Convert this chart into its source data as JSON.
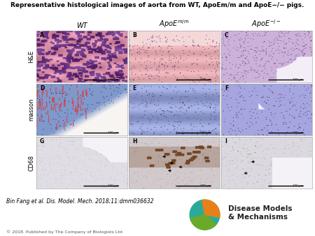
{
  "title": "Representative histological images of aorta from WT, ApoEm/m and ApoE−/− pigs.",
  "col_headers": [
    "WT",
    "$ApoE^{m/m}$",
    "$ApoE^{-/-}$"
  ],
  "row_labels": [
    "H&E",
    "masson",
    "CD68"
  ],
  "panel_labels": [
    "A",
    "B",
    "C",
    "D",
    "E",
    "F",
    "G",
    "H",
    "I"
  ],
  "citation": "Bin Fang et al. Dis. Model. Mech. 2018;11:dmm036632",
  "copyright": "© 2018. Published by The Company of Biologists Ltd",
  "bg_color": "#f5f5f5",
  "logo_teal": "#2aab9a",
  "logo_orange": "#e8801a",
  "logo_green": "#6aaa28",
  "logo_text": "Disease Models\n& Mechanisms",
  "title_fontsize": 6.5,
  "col_label_fontsize": 7,
  "row_label_fontsize": 6,
  "panel_label_fontsize": 5.5,
  "citation_fontsize": 5.5,
  "copyright_fontsize": 4.5,
  "logo_fontsize": 7.5,
  "scalebar_fontsize": 3.0
}
